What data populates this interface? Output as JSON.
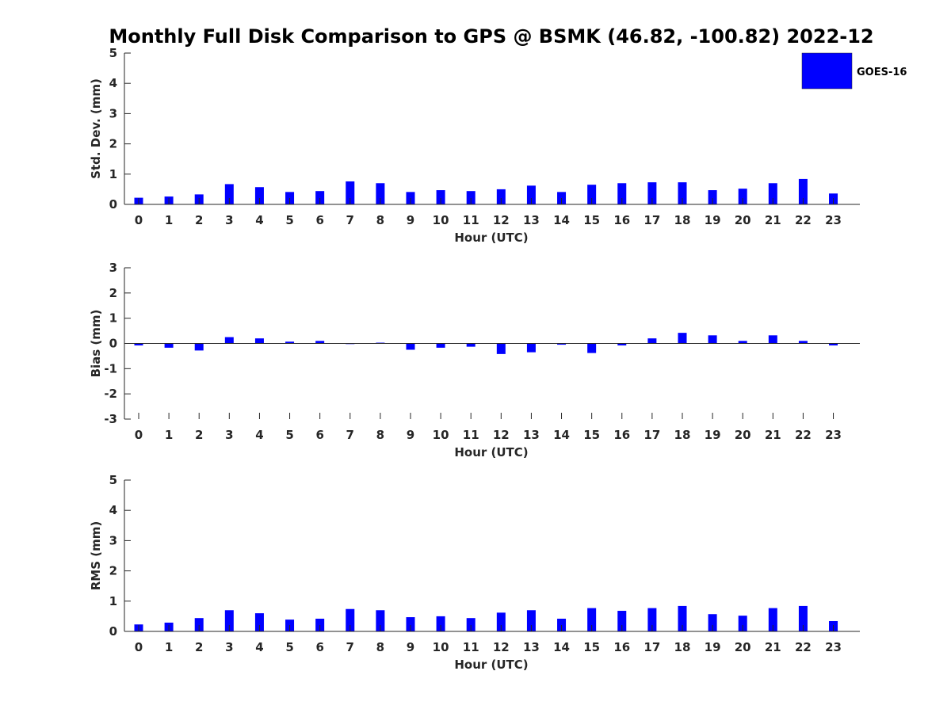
{
  "title": "Monthly Full Disk Comparison to GPS @ BSMK (46.82, -100.82) 2022-12",
  "legend": {
    "label": "GOES-16",
    "color": "#0000ff"
  },
  "chart_data": [
    {
      "type": "bar",
      "series": [
        {
          "name": "GOES-16",
          "color": "#0000ff",
          "values": [
            0.22,
            0.26,
            0.33,
            0.67,
            0.57,
            0.41,
            0.44,
            0.76,
            0.7,
            0.41,
            0.47,
            0.44,
            0.5,
            0.62,
            0.41,
            0.65,
            0.7,
            0.73,
            0.73,
            0.47,
            0.52,
            0.7,
            0.84,
            0.36
          ]
        }
      ],
      "categories": [
        "0",
        "1",
        "2",
        "3",
        "4",
        "5",
        "6",
        "7",
        "8",
        "9",
        "10",
        "11",
        "12",
        "13",
        "14",
        "15",
        "16",
        "17",
        "18",
        "19",
        "20",
        "21",
        "22",
        "23"
      ],
      "xlabel": "Hour (UTC)",
      "ylabel": "Std. Dev. (mm)",
      "ylim": [
        0,
        5
      ],
      "yticks": [
        "0",
        "1",
        "2",
        "3",
        "4",
        "5"
      ]
    },
    {
      "type": "bar",
      "series": [
        {
          "name": "GOES-16",
          "color": "#0000ff",
          "values": [
            -0.08,
            -0.17,
            -0.28,
            0.25,
            0.2,
            0.07,
            0.1,
            -0.02,
            0.03,
            -0.25,
            -0.17,
            -0.13,
            -0.42,
            -0.35,
            -0.05,
            -0.38,
            -0.08,
            0.2,
            0.42,
            0.32,
            0.1,
            0.32,
            0.1,
            -0.08
          ]
        }
      ],
      "categories": [
        "0",
        "1",
        "2",
        "3",
        "4",
        "5",
        "6",
        "7",
        "8",
        "9",
        "10",
        "11",
        "12",
        "13",
        "14",
        "15",
        "16",
        "17",
        "18",
        "19",
        "20",
        "21",
        "22",
        "23"
      ],
      "xlabel": "Hour (UTC)",
      "ylabel": "Bias (mm)",
      "ylim": [
        -3,
        3
      ],
      "yticks": [
        "-3",
        "-2",
        "-1",
        "0",
        "1",
        "2",
        "3"
      ]
    },
    {
      "type": "bar",
      "series": [
        {
          "name": "GOES-16",
          "color": "#0000ff",
          "values": [
            0.23,
            0.29,
            0.44,
            0.7,
            0.6,
            0.39,
            0.42,
            0.74,
            0.7,
            0.47,
            0.5,
            0.44,
            0.62,
            0.7,
            0.42,
            0.77,
            0.68,
            0.77,
            0.84,
            0.57,
            0.52,
            0.77,
            0.84,
            0.34
          ]
        }
      ],
      "categories": [
        "0",
        "1",
        "2",
        "3",
        "4",
        "5",
        "6",
        "7",
        "8",
        "9",
        "10",
        "11",
        "12",
        "13",
        "14",
        "15",
        "16",
        "17",
        "18",
        "19",
        "20",
        "21",
        "22",
        "23"
      ],
      "xlabel": "Hour (UTC)",
      "ylabel": "RMS (mm)",
      "ylim": [
        0,
        5
      ],
      "yticks": [
        "0",
        "1",
        "2",
        "3",
        "4",
        "5"
      ]
    }
  ]
}
